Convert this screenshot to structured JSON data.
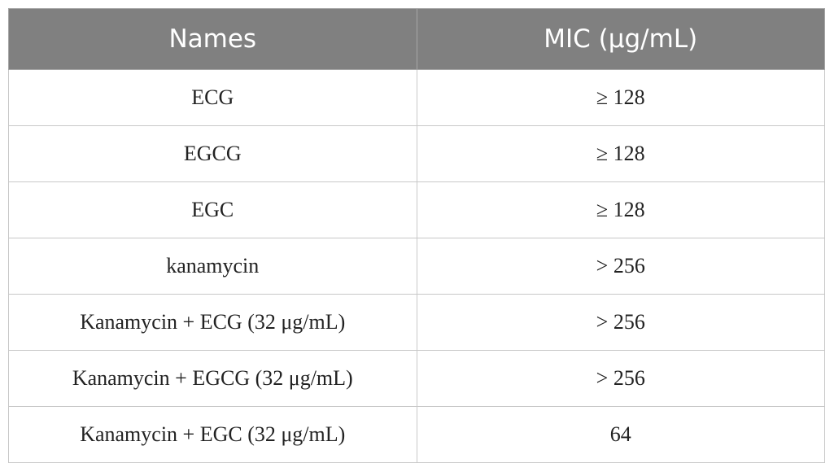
{
  "table": {
    "header": [
      "Names",
      "MIC (μg/mL)"
    ],
    "rows": [
      [
        "ECG",
        "≥ 128"
      ],
      [
        "EGCG",
        "≥ 128"
      ],
      [
        "EGC",
        "≥ 128"
      ],
      [
        "kanamycin",
        "> 256"
      ],
      [
        "Kanamycin + ECG (32 μg/mL)",
        "> 256"
      ],
      [
        "Kanamycin + EGCG (32 μg/mL)",
        "> 256"
      ],
      [
        "Kanamycin + EGC (32 μg/mL)",
        "64"
      ]
    ]
  }
}
